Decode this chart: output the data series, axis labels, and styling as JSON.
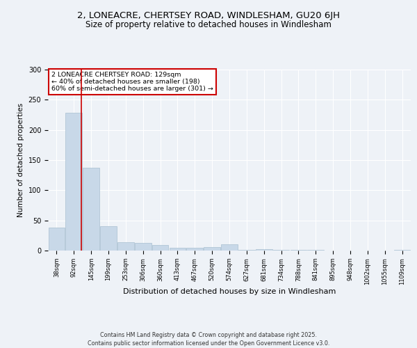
{
  "title1": "2, LONEACRE, CHERTSEY ROAD, WINDLESHAM, GU20 6JH",
  "title2": "Size of property relative to detached houses in Windlesham",
  "xlabel": "Distribution of detached houses by size in Windlesham",
  "ylabel": "Number of detached properties",
  "categories": [
    "38sqm",
    "92sqm",
    "145sqm",
    "199sqm",
    "253sqm",
    "306sqm",
    "360sqm",
    "413sqm",
    "467sqm",
    "520sqm",
    "574sqm",
    "627sqm",
    "681sqm",
    "734sqm",
    "788sqm",
    "841sqm",
    "895sqm",
    "948sqm",
    "1002sqm",
    "1055sqm",
    "1109sqm"
  ],
  "values": [
    38,
    229,
    137,
    40,
    14,
    13,
    9,
    5,
    5,
    6,
    10,
    1,
    2,
    1,
    1,
    1,
    0,
    0,
    0,
    0,
    1
  ],
  "bar_color": "#c8d8e8",
  "bar_edge_color": "#a8bfd0",
  "vline_x": 1.45,
  "vline_color": "#cc0000",
  "annotation_text": "2 LONEACRE CHERTSEY ROAD: 129sqm\n← 40% of detached houses are smaller (198)\n60% of semi-detached houses are larger (301) →",
  "annotation_box_color": "#cc0000",
  "ylim": [
    0,
    300
  ],
  "yticks": [
    0,
    50,
    100,
    150,
    200,
    250,
    300
  ],
  "bg_color": "#eef2f7",
  "plot_bg_color": "#eef2f7",
  "footer": "Contains HM Land Registry data © Crown copyright and database right 2025.\nContains public sector information licensed under the Open Government Licence v3.0.",
  "title_fontsize": 9.5,
  "subtitle_fontsize": 8.5,
  "grid_color": "#ffffff"
}
